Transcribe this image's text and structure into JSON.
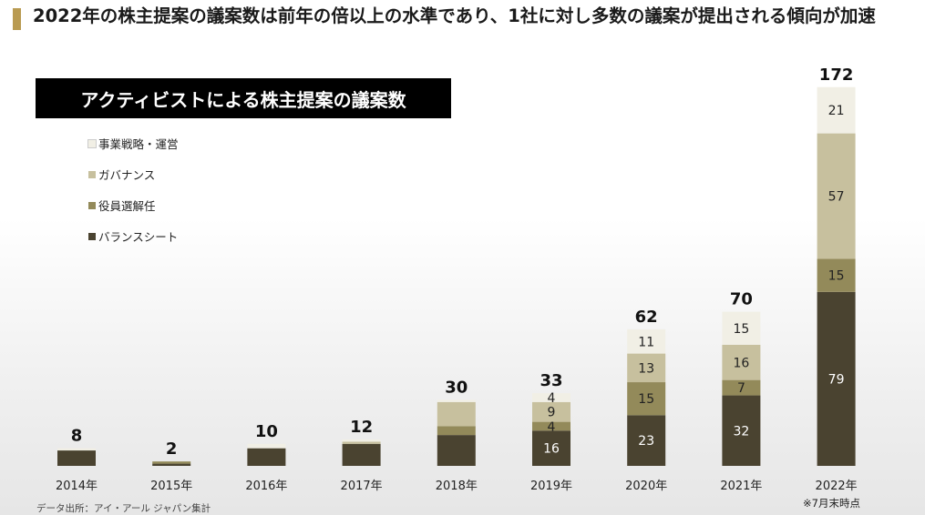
{
  "headline": "2022年の株主提案の議案数は前年の倍以上の水準であり、1社に対し多数の議案が提出される傾向が加速",
  "chart_title": "アクティビストによる株主提案の議案数",
  "source_note": "データ出所：アイ・アール ジャパン集計",
  "footnote": "※7月末時点",
  "chart_data": {
    "type": "bar",
    "stacked": true,
    "title": "アクティビストによる株主提案の議案数",
    "categories": [
      "2014年",
      "2015年",
      "2016年",
      "2017年",
      "2018年",
      "2019年",
      "2020年",
      "2021年",
      "2022年"
    ],
    "totals": [
      8,
      2,
      10,
      12,
      30,
      33,
      62,
      70,
      172
    ],
    "series": [
      {
        "name": "バランスシート",
        "color": "#4a4330",
        "values": [
          7,
          1,
          8,
          10,
          14,
          16,
          23,
          32,
          79
        ],
        "labels": [
          null,
          null,
          null,
          null,
          null,
          "16",
          "23",
          "32",
          "79"
        ]
      },
      {
        "name": "役員選解任",
        "color": "#938a5a",
        "values": [
          0,
          1,
          0,
          0,
          4,
          4,
          15,
          7,
          15
        ],
        "labels": [
          null,
          null,
          null,
          null,
          null,
          "4",
          "15",
          "7",
          "15"
        ]
      },
      {
        "name": "ガバナンス",
        "color": "#c7c09e",
        "values": [
          0,
          0,
          0,
          1,
          11,
          9,
          13,
          16,
          57
        ],
        "labels": [
          null,
          null,
          null,
          null,
          null,
          "9",
          "13",
          "16",
          "57"
        ]
      },
      {
        "name": "事業戦略・運営",
        "color": "#f1efe5",
        "values": [
          1,
          0,
          2,
          1,
          1,
          4,
          11,
          15,
          21
        ],
        "labels": [
          null,
          null,
          null,
          null,
          null,
          "4",
          "11",
          "15",
          "21"
        ]
      }
    ],
    "ylim": [
      0,
      172
    ],
    "xlabel": "",
    "ylabel": "",
    "grid": false,
    "legend_position": "top-left"
  }
}
